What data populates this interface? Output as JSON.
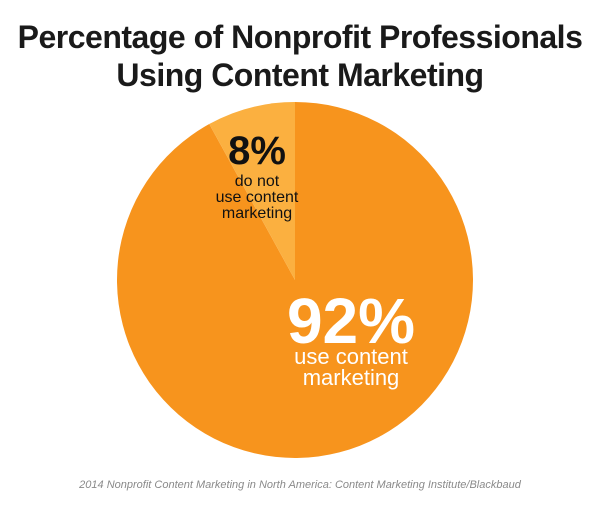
{
  "title_line1": "Percentage of Nonprofit Professionals",
  "title_line2": "Using Content Marketing",
  "source": "2014 Nonprofit Content Marketing in North America: Content Marketing Institute/Blackbaud",
  "colors": {
    "major_slice": "#f7941d",
    "minor_slice": "#fbb040",
    "title_text": "#1a1a1a",
    "minor_label_text": "#111111",
    "major_label_text": "#ffffff"
  },
  "chart_data": {
    "type": "pie",
    "start": "12 o'clock, clockwise",
    "slices": [
      {
        "value": 92,
        "percent_label": "92%",
        "label_lines": [
          "use content",
          "marketing"
        ],
        "color": "#f7941d"
      },
      {
        "value": 8,
        "percent_label": "8%",
        "label_lines": [
          "do not",
          "use content",
          "marketing"
        ],
        "color": "#fbb040"
      }
    ]
  }
}
